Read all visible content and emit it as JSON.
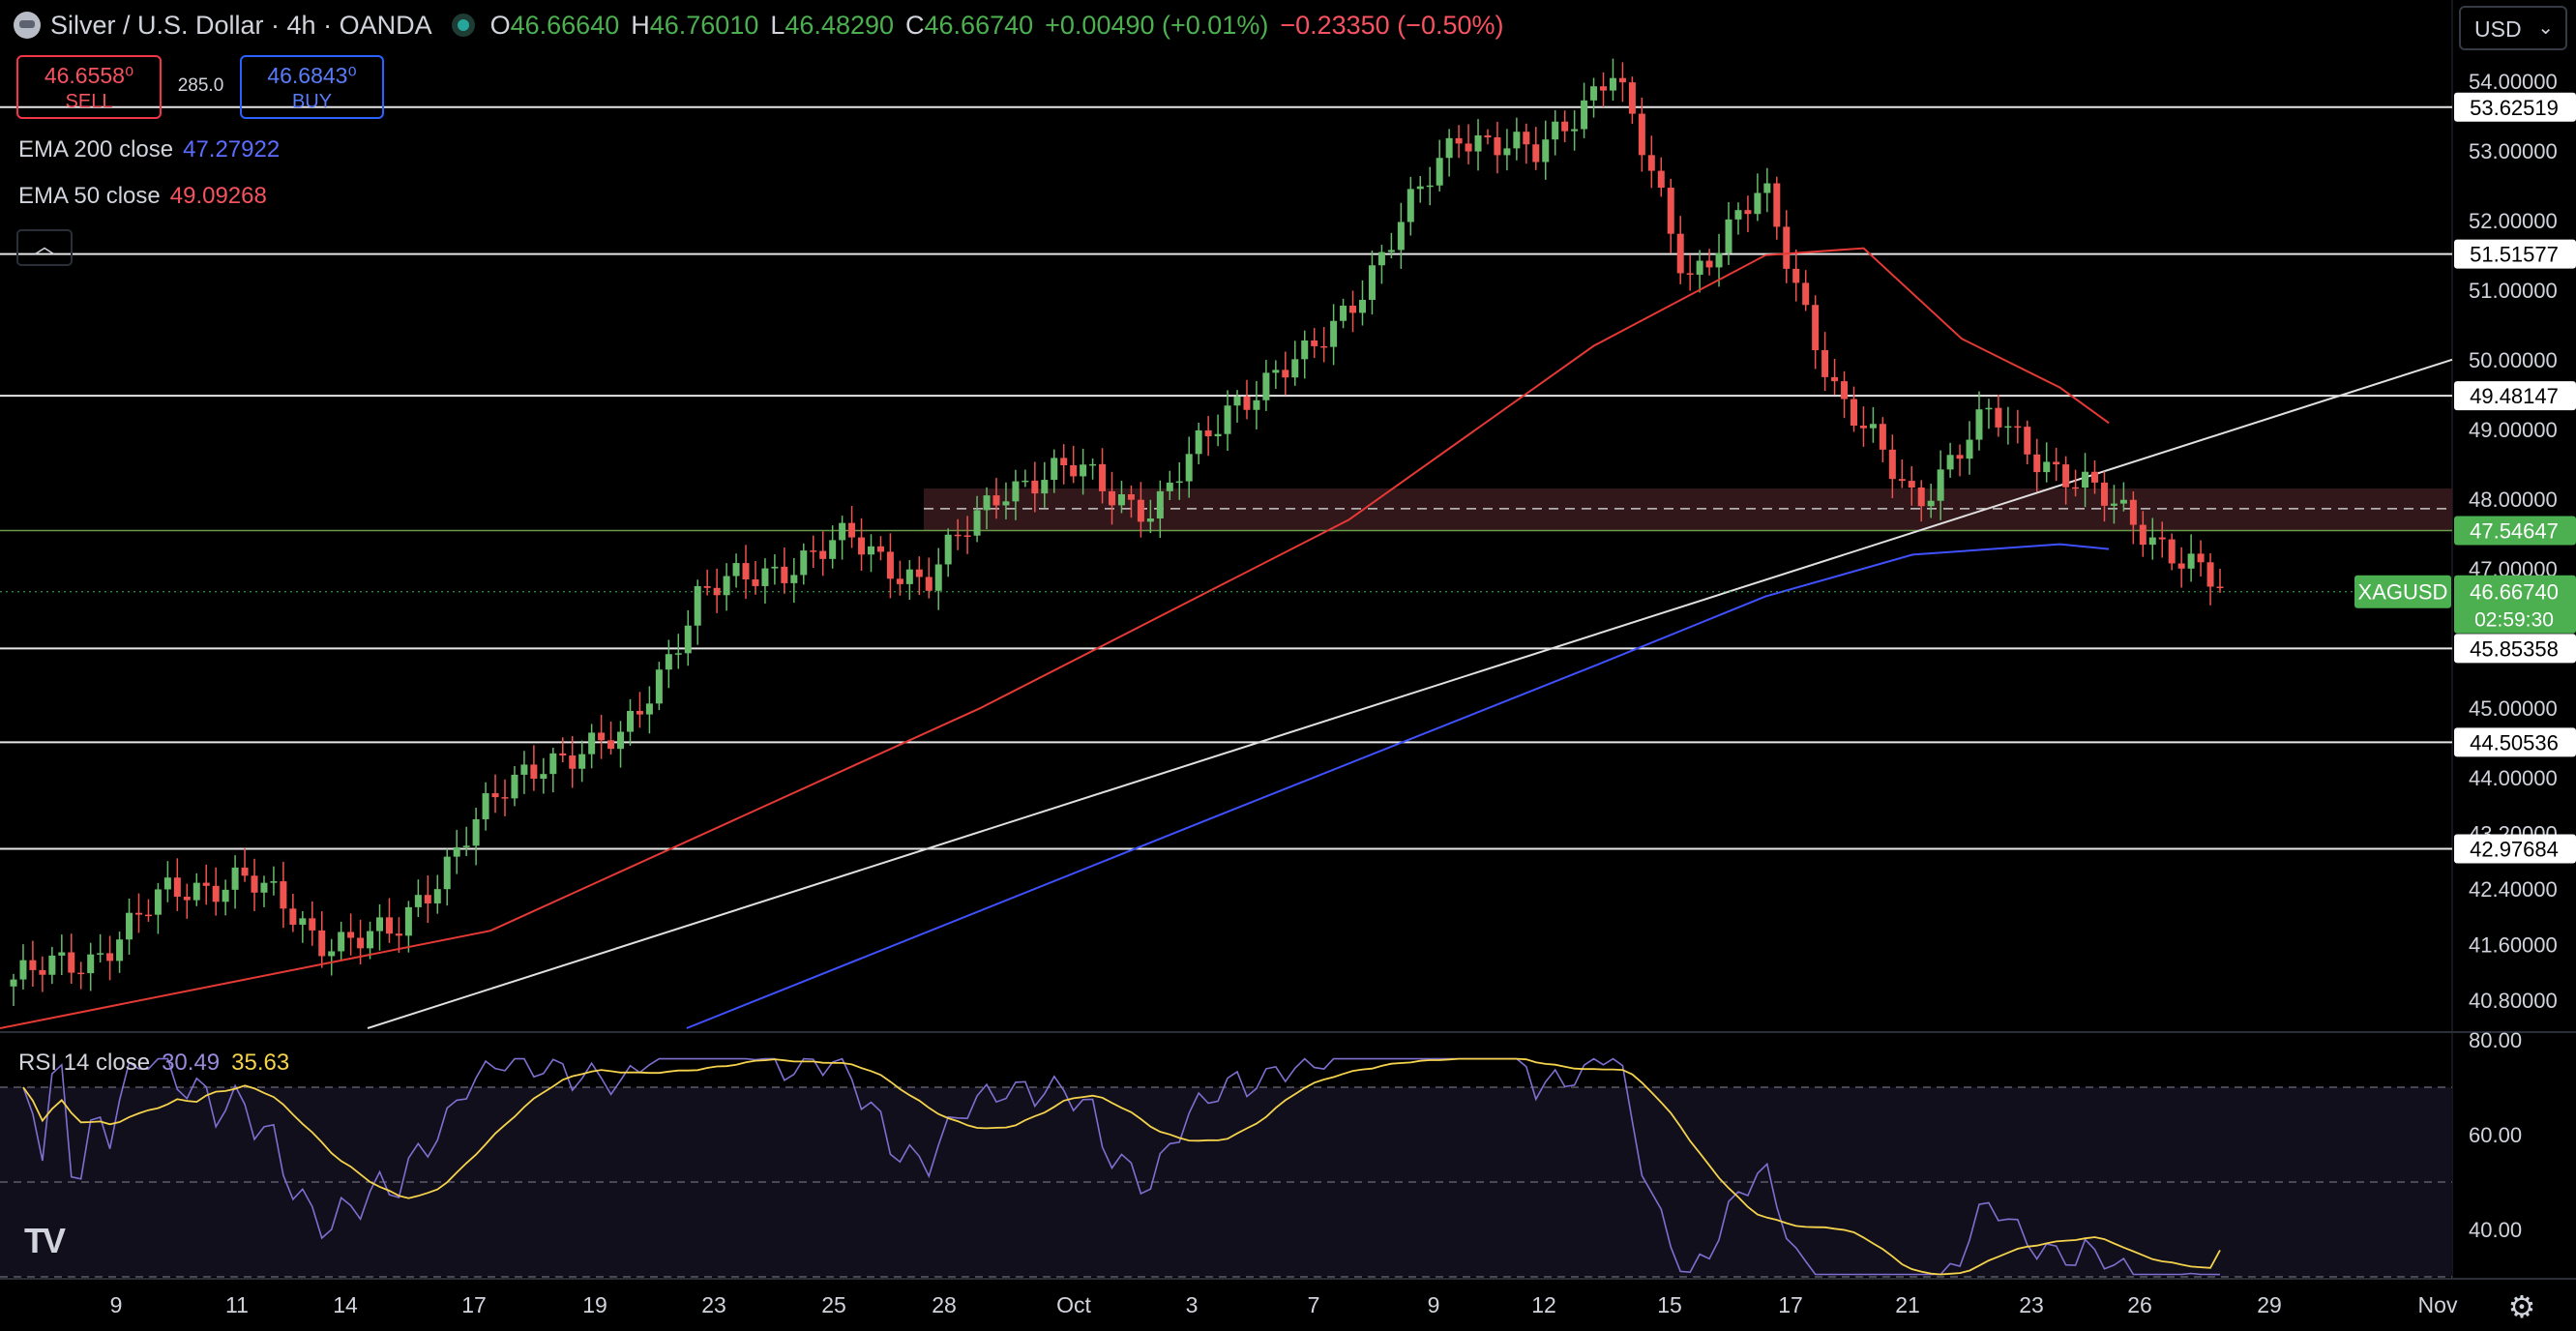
{
  "header": {
    "instrument": "Silver / U.S. Dollar · 4h · OANDA",
    "open_label": "O",
    "open": "46.66640",
    "high_label": "H",
    "high": "46.76010",
    "low_label": "L",
    "low": "46.48290",
    "close_label": "C",
    "close": "46.66740",
    "change": "+0.00490 (+0.01%)",
    "change2": "−0.23350 (−0.50%)"
  },
  "trade": {
    "sell_price": "46.6558⁰",
    "sell_label": "SELL",
    "spread": "285.0",
    "buy_price": "46.6843⁰",
    "buy_label": "BUY"
  },
  "indicators": {
    "ema200_label": "EMA 200 close",
    "ema200_value": "47.27922",
    "ema50_label": "EMA 50 close",
    "ema50_value": "49.09268",
    "rsi_label": "RSI 14 close",
    "rsi_value": "30.49",
    "rsi_ma_value": "35.63"
  },
  "currency": {
    "value": "USD",
    "caret": "⌄"
  },
  "controls": {
    "collapse_icon": "chevron-up-icon",
    "settings_icon": "gear-icon",
    "logo": "TV"
  },
  "colors": {
    "up": "#66bb6a",
    "down": "#ef5350",
    "ema50": "#e53935",
    "ema200": "#3f51ff",
    "rsi": "#7e6fd0",
    "rsi_ma": "#f5d34c",
    "zone": "#3a1a1e",
    "current_price_tag": "#4caf50"
  },
  "chart_data": {
    "type": "candlestick",
    "title": "Silver / U.S. Dollar · 4h · OANDA",
    "y_axis_ticks": [
      "54.00000",
      "53.00000",
      "52.00000",
      "51.00000",
      "50.00000",
      "49.00000",
      "48.00000",
      "47.00000",
      "45.00000",
      "44.00000",
      "43.20000",
      "42.40000",
      "41.60000",
      "40.80000"
    ],
    "y_axis_range": [
      40.4,
      54.4
    ],
    "x_axis_ticks": [
      "9",
      "11",
      "14",
      "17",
      "19",
      "23",
      "25",
      "28",
      "Oct",
      "3",
      "7",
      "9",
      "12",
      "15",
      "17",
      "21",
      "23",
      "26",
      "29",
      "Nov"
    ],
    "horizontal_levels": [
      "53.62519",
      "51.51577",
      "49.48147",
      "47.54647",
      "45.85358",
      "44.50536",
      "42.97684"
    ],
    "current_price": {
      "label": "XAGUSD",
      "value": "46.66740",
      "countdown": "02:59:30"
    },
    "resistance_zone": [
      47.55,
      48.15
    ],
    "dashed_level": 47.86,
    "trendline": {
      "from": [
        0.0,
        40.4
      ],
      "to": [
        1.0,
        50.0
      ]
    },
    "candles_keypoints": [
      {
        "x": "9",
        "close": 41.1
      },
      {
        "x": "11",
        "close": 41.4
      },
      {
        "x": "14",
        "close": 42.3
      },
      {
        "x": "16",
        "close": 42.6
      },
      {
        "x": "17",
        "close": 41.7
      },
      {
        "x": "19",
        "close": 41.7
      },
      {
        "x": "21",
        "close": 43.3
      },
      {
        "x": "23",
        "close": 44.3
      },
      {
        "x": "25",
        "close": 44.5
      },
      {
        "x": "27",
        "close": 46.6
      },
      {
        "x": "28",
        "close": 47.0
      },
      {
        "x": "Oct",
        "close": 47.4
      },
      {
        "x": "3",
        "close": 46.8
      },
      {
        "x": "5",
        "close": 48.2
      },
      {
        "x": "7",
        "close": 48.4
      },
      {
        "x": "8",
        "close": 47.8
      },
      {
        "x": "9",
        "close": 49.4
      },
      {
        "x": "11",
        "close": 50.0
      },
      {
        "x": "12",
        "close": 51.5
      },
      {
        "x": "13",
        "close": 53.3
      },
      {
        "x": "15",
        "close": 52.9
      },
      {
        "x": "17",
        "close": 54.2
      },
      {
        "x": "18",
        "close": 51.2
      },
      {
        "x": "20",
        "close": 52.4
      },
      {
        "x": "21",
        "close": 49.4
      },
      {
        "x": "22",
        "close": 48.0
      },
      {
        "x": "23",
        "close": 49.2
      },
      {
        "x": "25",
        "close": 48.3
      },
      {
        "x": "26",
        "close": 47.6
      },
      {
        "x": "27",
        "close": 46.67
      }
    ],
    "ema50_keypoints": [
      [
        0,
        40.4
      ],
      [
        0.2,
        41.8
      ],
      [
        0.4,
        45.0
      ],
      [
        0.55,
        47.7
      ],
      [
        0.65,
        50.2
      ],
      [
        0.72,
        51.5
      ],
      [
        0.76,
        51.6
      ],
      [
        0.8,
        50.3
      ],
      [
        0.84,
        49.6
      ],
      [
        0.86,
        49.09
      ]
    ],
    "ema200_keypoints": [
      [
        0.28,
        40.4
      ],
      [
        0.5,
        43.5
      ],
      [
        0.65,
        45.6
      ],
      [
        0.72,
        46.6
      ],
      [
        0.78,
        47.2
      ],
      [
        0.84,
        47.35
      ],
      [
        0.86,
        47.28
      ]
    ],
    "rsi_panel": {
      "ticks": [
        "80.00",
        "60.00",
        "40.00"
      ],
      "range": [
        30,
        80
      ],
      "bands": [
        70,
        50,
        30
      ],
      "rsi_last": 30.49,
      "rsi_ma_last": 35.63
    }
  }
}
